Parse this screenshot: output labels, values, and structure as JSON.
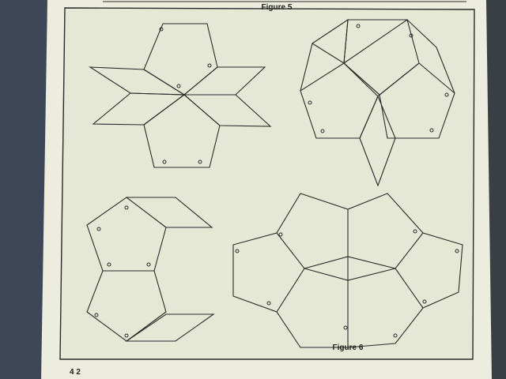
{
  "figure_top_label": "Figure 5",
  "figure_bottom_label": "Figure 6",
  "page_number": "4 2",
  "colors": {
    "paper": "#eceddf",
    "panel": "#e6e8d6",
    "ink": "#2a2a2a",
    "cloth": "#4a5566",
    "spine": "#3a3f44"
  }
}
